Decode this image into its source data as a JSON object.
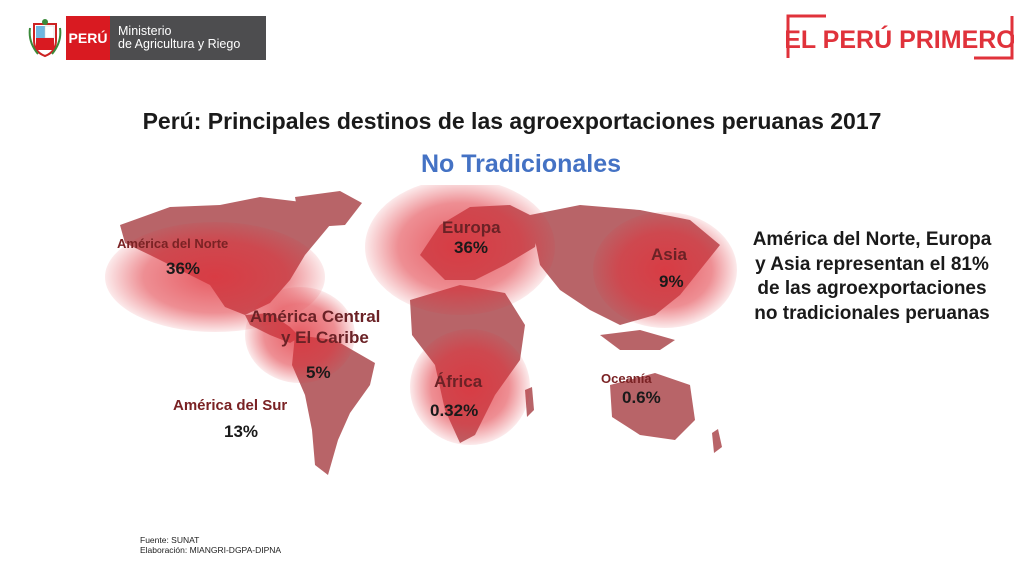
{
  "header": {
    "country": "PERÚ",
    "ministry_line1": "Ministerio",
    "ministry_line2": "de Agricultura y Riego"
  },
  "brand": {
    "text": "EL PERÚ PRIMERO",
    "color": "#e0323b"
  },
  "title": "Perú: Principales destinos de las agroexportaciones peruanas 2017",
  "subtitle": "No Tradicionales",
  "regions": {
    "north_america": {
      "name": "América del Norte",
      "value": "36%"
    },
    "europe": {
      "name": "Europa",
      "value": "36%"
    },
    "asia": {
      "name": "Asia",
      "value": "9%"
    },
    "central_america": {
      "name_line1": "América Central",
      "name_line2": "y El Caribe",
      "value": "5%"
    },
    "africa": {
      "name": "África",
      "value": "0.32%"
    },
    "oceania": {
      "name": "Oceanía",
      "value": "0.6%"
    },
    "south_america": {
      "name": "América del Sur",
      "value": "13%"
    }
  },
  "summary": "América del Norte, Europa y Asia representan  el 81% de las agroexportaciones no tradicionales peruanas",
  "source": {
    "line1": "Fuente: SUNAT",
    "line2": "Elaboración: MIANGRI-DGPA-DIPNA"
  },
  "colors": {
    "land": "#b86468",
    "highlight": "#e0323b",
    "label_dark": "#7a2224",
    "subtitle": "#4472c4"
  }
}
